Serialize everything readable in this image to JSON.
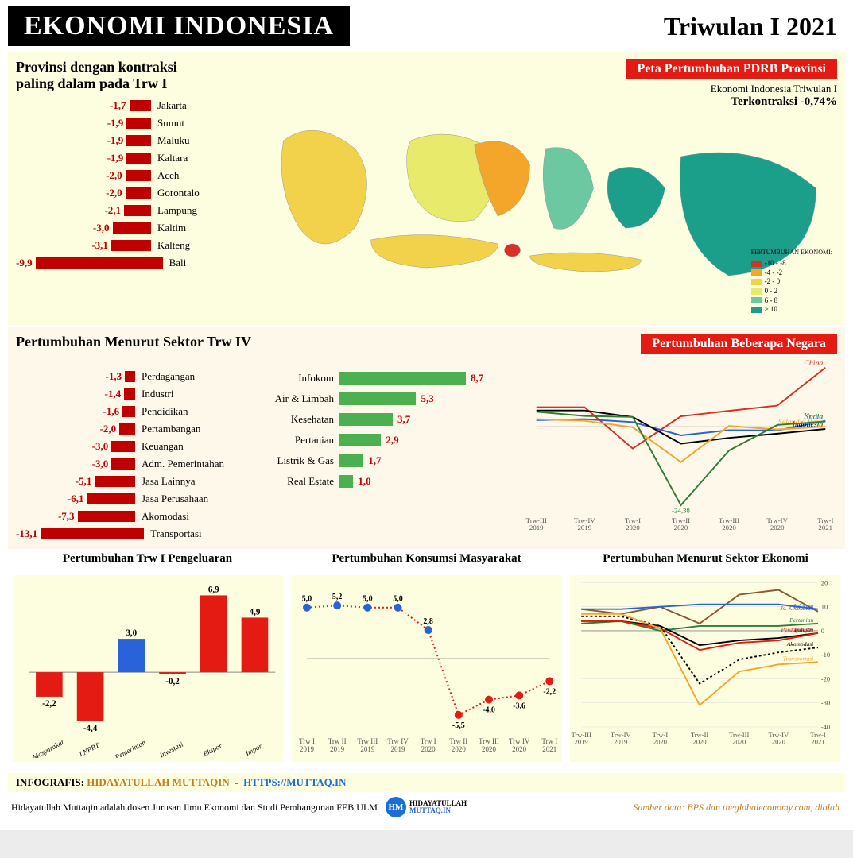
{
  "header": {
    "title_left": "EKONOMI INDONESIA",
    "title_right": "Triwulan I 2021"
  },
  "provinces": {
    "heading": "Provinsi dengan kontraksi\npaling dalam pada Trw I",
    "bar_color": "#c00000",
    "value_color": "#c00000",
    "max_abs": 9.9,
    "items": [
      {
        "label": "Jakarta",
        "value": -1.7
      },
      {
        "label": "Sumut",
        "value": -1.9
      },
      {
        "label": "Maluku",
        "value": -1.9
      },
      {
        "label": "Kaltara",
        "value": -1.9
      },
      {
        "label": "Aceh",
        "value": -2.0
      },
      {
        "label": "Gorontalo",
        "value": -2.0
      },
      {
        "label": "Lampung",
        "value": -2.1
      },
      {
        "label": "Kaltim",
        "value": -3.0
      },
      {
        "label": "Kalteng",
        "value": -3.1
      },
      {
        "label": "Bali",
        "value": -9.9
      }
    ]
  },
  "map": {
    "banner": "Peta Pertumbuhan PDRB Provinsi",
    "subtitle1": "Ekonomi Indonesia Triwulan I",
    "subtitle2": "Terkontraksi -0,74%",
    "legend_title": "PERTUMBUHAN EKONOMI:",
    "legend": [
      {
        "color": "#d93025",
        "label": "-10 - -8"
      },
      {
        "color": "#f4a62a",
        "label": "-4 - -2"
      },
      {
        "color": "#f2d24a",
        "label": "-2 - 0"
      },
      {
        "color": "#e8ea6b",
        "label": "0 - 2"
      },
      {
        "color": "#6bc8a0",
        "label": "6 - 8"
      },
      {
        "color": "#1b9e8a",
        "label": "> 10"
      }
    ],
    "island_colors": {
      "sumatra": "#f2d24a",
      "java": "#f2d24a",
      "bali": "#d93025",
      "kalimantan_w": "#e8ea6b",
      "kalimantan_e": "#f4a62a",
      "sulawesi": "#6bc8a0",
      "maluku": "#1b9e8a",
      "papua": "#1b9e8a",
      "nt": "#f2d24a"
    }
  },
  "sektor": {
    "heading": "Pertumbuhan Menurut Sektor Trw IV",
    "neg_color": "#c00000",
    "neg_max_abs": 13.1,
    "neg": [
      {
        "label": "Perdagangan",
        "value": -1.3
      },
      {
        "label": "Industri",
        "value": -1.4
      },
      {
        "label": "Pendidikan",
        "value": -1.6
      },
      {
        "label": "Pertambangan",
        "value": -2.0
      },
      {
        "label": "Keuangan",
        "value": -3.0
      },
      {
        "label": "Adm. Pemerintahan",
        "value": -3.0
      },
      {
        "label": "Jasa Lainnya",
        "value": -5.1
      },
      {
        "label": "Jasa Perusahaan",
        "value": -6.1
      },
      {
        "label": "Akomodasi",
        "value": -7.3
      },
      {
        "label": "Transportasi",
        "value": -13.1
      }
    ],
    "pos_color": "#4caf50",
    "pos_max": 8.7,
    "pos": [
      {
        "label": "Infokom",
        "value": 8.7
      },
      {
        "label": "Air & Limbah",
        "value": 5.3
      },
      {
        "label": "Kesehatan",
        "value": 3.7
      },
      {
        "label": "Pertanian",
        "value": 2.9
      },
      {
        "label": "Listrik & Gas",
        "value": 1.7
      },
      {
        "label": "Real Estate",
        "value": 1.0
      }
    ]
  },
  "countries": {
    "banner": "Pertumbuhan Beberapa Negara",
    "x_labels": [
      "Trw-III 2019",
      "Trw-IV 2019",
      "Trw-I 2020",
      "Trw-II 2020",
      "Trw-III 2020",
      "Trw-IV 2020",
      "Trw-I 2021"
    ],
    "min_label": "-24,38",
    "series": [
      {
        "name": "China",
        "color": "#d93025",
        "values": [
          6,
          6,
          -6.8,
          3.2,
          4.9,
          6.5,
          18.3
        ]
      },
      {
        "name": "Korea",
        "color": "#2962d9",
        "values": [
          2,
          2.3,
          1.4,
          -2.7,
          -1.1,
          -1.2,
          1.8
        ]
      },
      {
        "name": "Indonesia",
        "color": "#000000",
        "values": [
          5,
          5,
          2.97,
          -5.3,
          -3.5,
          -2.2,
          -0.74
        ]
      },
      {
        "name": "Selandia Baru",
        "color": "#f4a62a",
        "values": [
          2.3,
          1.8,
          -0.2,
          -11,
          0.2,
          -0.9,
          0
        ]
      },
      {
        "name": "India",
        "color": "#2e7d32",
        "values": [
          4.6,
          3.3,
          3.0,
          -24.38,
          -7.4,
          0.5,
          1.6
        ]
      }
    ]
  },
  "pengeluaran": {
    "title": "Pertumbuhan Trw I Pengeluaran",
    "bg": "#fdfde0",
    "grid": "#cccccc",
    "x_labels": [
      "Masyarakat",
      "LNPRT",
      "Pemerintah",
      "Investasi",
      "Ekspor",
      "Impor"
    ],
    "values": [
      -2.2,
      -4.4,
      3.0,
      -0.2,
      6.9,
      4.9
    ],
    "colors": [
      "#e31b13",
      "#e31b13",
      "#2962d9",
      "#e31b13",
      "#e31b13",
      "#e31b13"
    ],
    "ylim": [
      -5,
      8
    ]
  },
  "konsumsi": {
    "title": "Pertumbuhan Konsumsi Masyarakat",
    "x_labels": [
      "Trw I 2019",
      "Trw II 2019",
      "Trw III 2019",
      "Trw IV 2019",
      "Trw I 2020",
      "Trw II 2020",
      "Trw III 2020",
      "Trw IV 2020",
      "Trw I 2021"
    ],
    "values": [
      5.0,
      5.2,
      5.0,
      5.0,
      2.8,
      -5.5,
      -4.0,
      -3.6,
      -2.2
    ],
    "pos_color": "#2962d9",
    "neg_color": "#e31b13",
    "line_color_dash": "#e31b13"
  },
  "sektor_ekonomi": {
    "title": "Pertumbuhan Menurut Sektor Ekonomi",
    "x_labels": [
      "Trw-III 2019",
      "Trw-IV 2019",
      "Trw-I 2020",
      "Trw-II 2020",
      "Trw-III 2020",
      "Trw-IV 2020",
      "Trw-I 2021"
    ],
    "ylim": [
      -40,
      20
    ],
    "ytick_step": 10,
    "series": [
      {
        "name": "Js. Kesehatan",
        "color": "#8b5a2b",
        "values": [
          9,
          7,
          10,
          3,
          15,
          17,
          8
        ]
      },
      {
        "name": "Infokom",
        "color": "#2962d9",
        "values": [
          9,
          9,
          10,
          11,
          11,
          11,
          9
        ]
      },
      {
        "name": "Pertanian",
        "color": "#2e7d32",
        "values": [
          3,
          4,
          0,
          2,
          2,
          2,
          3
        ]
      },
      {
        "name": "Industri",
        "color": "#000000",
        "values": [
          4,
          4,
          2,
          -6,
          -4,
          -3,
          -1
        ]
      },
      {
        "name": "Perdagangan",
        "color": "#e31b13",
        "values": [
          4,
          4,
          1,
          -8,
          -5,
          -4,
          -1
        ]
      },
      {
        "name": "Akomodasi",
        "color": "#000000",
        "dash": true,
        "values": [
          6,
          6,
          2,
          -22,
          -12,
          -9,
          -7
        ]
      },
      {
        "name": "Transportasi",
        "color": "#f4a62a",
        "values": [
          7,
          7,
          1,
          -31,
          -17,
          -14,
          -13
        ]
      }
    ]
  },
  "footer": {
    "infografis_label": "INFOGRAFIS:",
    "author": "HIDAYATULLAH MUTTAQIN",
    "url": "HTTPS://MUTTAQ.IN",
    "bio": "Hidayatullah Muttaqin adalah dosen Jurusan Ilmu Ekonomi dan Studi Pembangunan FEB ULM",
    "badge_top": "HIDAYATULLAH",
    "badge_bot": "MUTTAQ.IN",
    "source": "Sumber data: BPS dan theglobaleconomy.com, diolah."
  }
}
